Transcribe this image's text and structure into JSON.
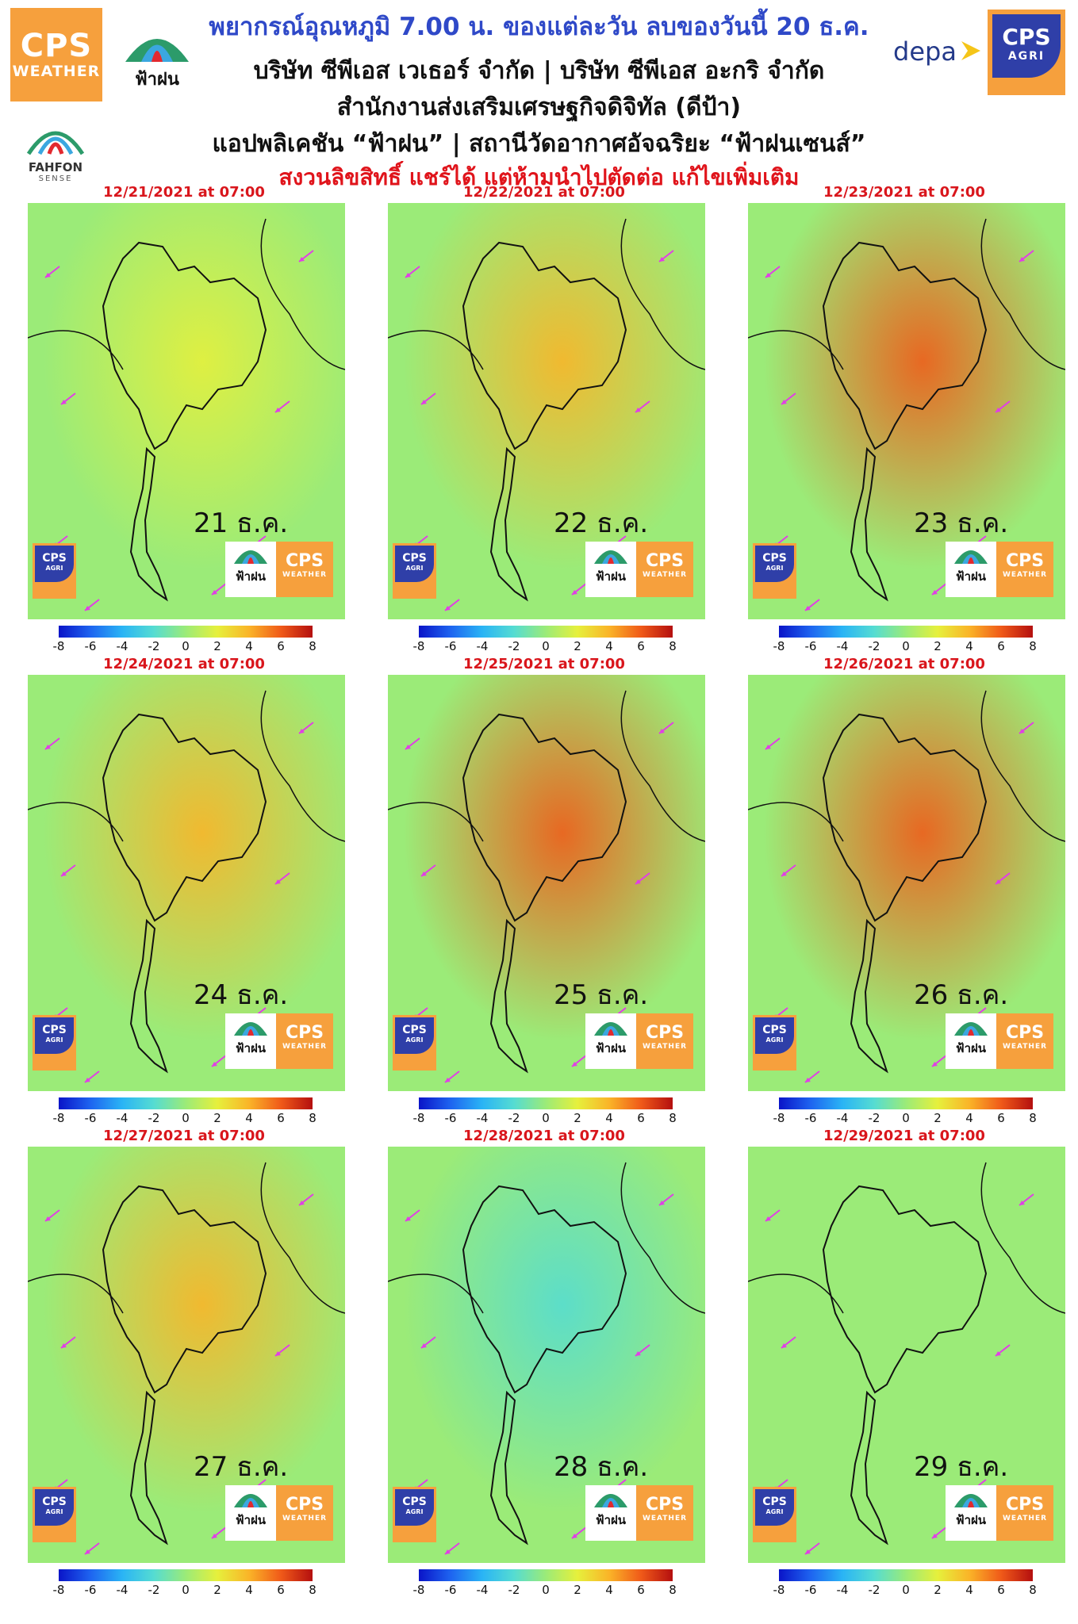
{
  "header": {
    "headline": "พยากรณ์อุณหภูมิ 7.00 น. ของแต่ละวัน ลบของวันนี้ 20 ธ.ค.",
    "line2": "บริษัท ซีพีเอส เวเธอร์ จำกัด | บริษัท ซีพีเอส อะกริ จำกัด",
    "line3": "สำนักงานส่งเสริมเศรษฐกิจดิจิทัล (ดีป้า)",
    "line4": "แอปพลิเคชัน “ฟ้าฝน” | สถานีวัดอากาศอัจฉริยะ “ฟ้าฝนเซนส์”",
    "line5": "สงวนลิขสิทธิ์ แชร์ได้ แต่ห้ามนำไปตัดต่อ แก้ไขเพิ่มเติม"
  },
  "logos": {
    "cps_weather": {
      "big": "CPS",
      "small": "WEATHER"
    },
    "fahfon": {
      "label": "ฟ้าฝน"
    },
    "fahfon_sense": {
      "label1": "FAHFON",
      "label2": "SENSE"
    },
    "depa": {
      "label": "depa"
    },
    "cps_agri": {
      "big": "CPS",
      "small": "AGRI"
    }
  },
  "colorbar": {
    "ticks": [
      "-8",
      "-6",
      "-4",
      "-2",
      "0",
      "2",
      "4",
      "6",
      "8"
    ],
    "colors": [
      "#0a14c8",
      "#1e64f0",
      "#2ab4f5",
      "#55dcd2",
      "#9beb78",
      "#e6f03c",
      "#fab428",
      "#f05a19",
      "#b40f0f"
    ]
  },
  "panels": [
    {
      "title": "12/21/2021 at 07:00",
      "day_label": "21 ธ.ค.",
      "anomaly": 2.5
    },
    {
      "title": "12/22/2021 at 07:00",
      "day_label": "22 ธ.ค.",
      "anomaly": 4.0
    },
    {
      "title": "12/23/2021 at 07:00",
      "day_label": "23 ธ.ค.",
      "anomaly": 5.0
    },
    {
      "title": "12/24/2021 at 07:00",
      "day_label": "24 ธ.ค.",
      "anomaly": 4.5
    },
    {
      "title": "12/25/2021 at 07:00",
      "day_label": "25 ธ.ค.",
      "anomaly": 5.5
    },
    {
      "title": "12/26/2021 at 07:00",
      "day_label": "26 ธ.ค.",
      "anomaly": 6.0
    },
    {
      "title": "12/27/2021 at 07:00",
      "day_label": "27 ธ.ค.",
      "anomaly": 3.0
    },
    {
      "title": "12/28/2021 at 07:00",
      "day_label": "28 ธ.ค.",
      "anomaly": -2.0
    },
    {
      "title": "12/29/2021 at 07:00",
      "day_label": "29 ธ.ค.",
      "anomaly": -1.0
    }
  ],
  "mini_logos": {
    "agri_big": "CPS",
    "agri_small": "AGRI",
    "fahfon": "ฟ้าฝน",
    "cps_big": "CPS",
    "cps_small": "WEATHER"
  }
}
